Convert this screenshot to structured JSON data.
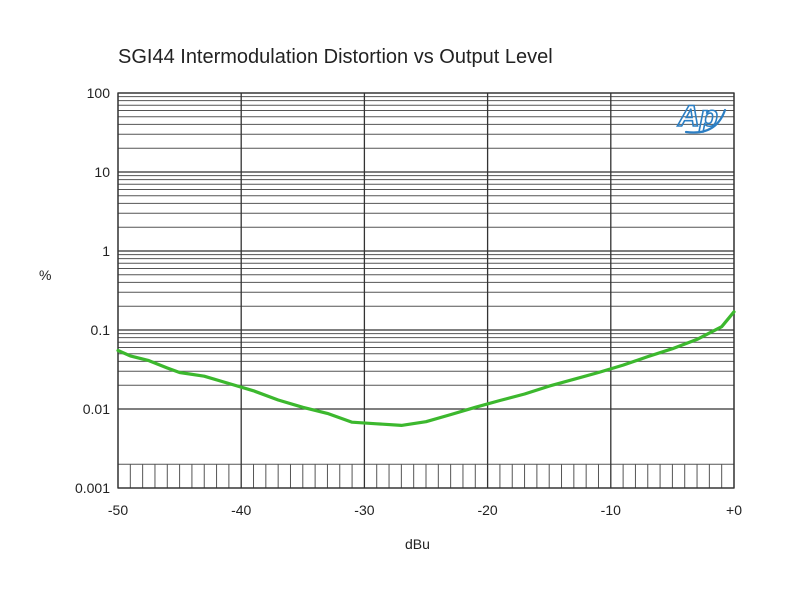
{
  "chart_data": {
    "type": "line",
    "title": "SGI44 Intermodulation Distortion vs Output Level",
    "xlabel": "dBu",
    "ylabel": "%",
    "xlim": [
      -50,
      0
    ],
    "ylim": [
      0.001,
      100
    ],
    "yscale": "log",
    "grid": true,
    "x_ticks": [
      -50,
      -40,
      -30,
      -20,
      -10,
      0
    ],
    "x_tick_labels": [
      "-50",
      "-40",
      "-30",
      "-20",
      "-10",
      "+0"
    ],
    "y_ticks": [
      0.001,
      0.01,
      0.1,
      1,
      10,
      100
    ],
    "y_tick_labels": [
      "0.001",
      "0.01",
      "0.1",
      "1",
      "10",
      "100"
    ],
    "series": [
      {
        "color": "#3cb82e",
        "x": [
          -50,
          -49,
          -47.5,
          -46,
          -45,
          -43,
          -41,
          -39,
          -37,
          -35,
          -33,
          -31,
          -29,
          -27,
          -25,
          -23,
          -21,
          -19,
          -17,
          -15,
          -13,
          -11,
          -9,
          -7,
          -5,
          -3,
          -1,
          0
        ],
        "y": [
          0.055,
          0.047,
          0.041,
          0.033,
          0.029,
          0.026,
          0.021,
          0.017,
          0.013,
          0.0105,
          0.0088,
          0.0068,
          0.0065,
          0.0062,
          0.0069,
          0.0085,
          0.0105,
          0.0128,
          0.0155,
          0.0195,
          0.0238,
          0.029,
          0.036,
          0.046,
          0.058,
          0.076,
          0.11,
          0.17
        ]
      }
    ]
  },
  "logo": {
    "text": "Ap",
    "color": "#2c7fc4"
  }
}
